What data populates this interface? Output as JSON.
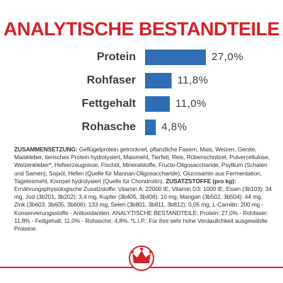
{
  "chart_data": {
    "type": "bar",
    "orientation": "horizontal",
    "title": "ANALYTISCHE BESTANDTEILE",
    "categories": [
      "Protein",
      "Rohfaser",
      "Fettgehalt",
      "Rohasche"
    ],
    "values": [
      27.0,
      11.8,
      11.0,
      4.8
    ],
    "value_labels": [
      "27,0%",
      "11,8%",
      "11,0%",
      "4,8%"
    ],
    "color": "#2f6db5"
  },
  "composition": [
    "ZUSAMMENSETZUNG:",
    " Geflügelprotein getrocknet, pflanzliche Fasern, Mais, Weizen, Gerste, Maiskleber, tierisches Protein hydrolysiert, Maismehl, Tierfett, Reis, Rübenschnitzel, Pulvercellulose, Weizenkleber*, Hefeerzeugnisse, Fischöl, Mineralstoffe, Fructo-Oligosaccharide, Psyllium (Schalen und Samen), Sojaöl, Hefen (Quelle für Mannan-Oligosaccharide), Glucosamin aus Fermentation, Tagetesmehl, Knorpel hydrolysiert (Quelle für Chondroitin). ",
    "ZUSATZSTOFFE (pro kg):",
    " Ernährungsphysiologische Zusatzstoffe: Vitamin A: 22000 IE, Vitamin D3: 1000 IE, Eisen (3b103): 34 mg, Jod (3b201, 3b202): 3,4 mg, Kupfer (3b405, 3b406): 10 mg, Mangan (3b502, 3b504): 44 mg, Zink (3b603, 3b605, 3b606): 133 mg, Selen (3b801, 3b811, 3b812): 0,05 mg, L-Carnitin: 200 mg - Konservierungsstoffe - Antioxidantien. ANALYTISCHE BESTANDTEILE: Protein: 27,0% - Rohfaser: 11,8% - Fettgehalt: 11,0% - Rohasche: 4,8%. *L.I.P.: Für ihre sehr hohe Verdaulichkeit ausgewählte Proteine."
  ]
}
